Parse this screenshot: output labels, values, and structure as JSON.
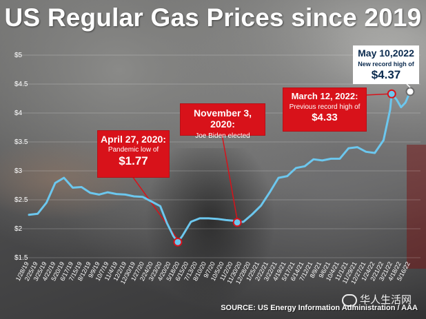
{
  "title": "US Regular Gas Prices since 2019",
  "source": "SOURCE: US Energy Information Administration / AAA",
  "watermark": "华人生活网",
  "colors": {
    "line": "#6cc7ee",
    "callout": "#d8121a",
    "record_text": "#0a2a4e"
  },
  "annotations": {
    "low": {
      "date": "April 27, 2020:",
      "note": "Pandemic low of",
      "value": "$1.77"
    },
    "biden": {
      "date": "November 3, 2020:",
      "note": "Joe Biden elected"
    },
    "prev_record": {
      "date": "March 12, 2022:",
      "note": "Previous record high of",
      "value": "$4.33"
    },
    "record": {
      "date": "May 10,2022",
      "note": "New record high of",
      "value": "$4.37"
    }
  },
  "chart_data": {
    "type": "line",
    "ylim": [
      1.5,
      5.0
    ],
    "yticks": [
      "$1.5",
      "$2",
      "$2.5",
      "$3",
      "$3.5",
      "$4",
      "$4.5",
      "$5"
    ],
    "ytick_values": [
      1.5,
      2,
      2.5,
      3,
      3.5,
      4,
      4.5,
      5
    ],
    "xticks": [
      "1/28/19",
      "2/25/19",
      "3/25/19",
      "4/22/19",
      "5/20/19",
      "6/17/19",
      "7/15/19",
      "8/12/19",
      "9/9/19",
      "10/7/19",
      "11/4/19",
      "12/2/19",
      "12/30/19",
      "1/27/20",
      "2/24/20",
      "3/23/20",
      "4/20/20",
      "5/18/20",
      "6/15/20",
      "7/13/20",
      "8/10/20",
      "9/7/20",
      "10/5/20",
      "11/2/20",
      "11/30/20",
      "12/28/20",
      "1/25/21",
      "2/22/21",
      "3/22/21",
      "4/19/21",
      "5/17/21",
      "6/14/21",
      "7/12/21",
      "8/9/21",
      "9/6/21",
      "10/4/21",
      "11/1/21",
      "11/29/21",
      "12/27/21",
      "1/24/22",
      "2/21/22",
      "3/21/22",
      "4/18/22",
      "5/16/22"
    ],
    "x": [
      "1/7/19",
      "2/4/19",
      "3/4/19",
      "4/1/19",
      "4/29/19",
      "5/27/19",
      "6/24/19",
      "7/22/19",
      "8/19/19",
      "9/16/19",
      "10/14/19",
      "11/11/19",
      "12/9/19",
      "1/6/20",
      "2/3/20",
      "3/2/20",
      "3/23/20",
      "4/13/20",
      "4/27/20",
      "5/11/20",
      "6/8/20",
      "7/6/20",
      "8/3/20",
      "8/31/20",
      "9/28/20",
      "10/19/20",
      "11/3/20",
      "11/23/20",
      "12/21/20",
      "1/18/21",
      "2/15/21",
      "3/15/21",
      "4/12/21",
      "5/10/21",
      "6/7/21",
      "7/5/21",
      "8/2/21",
      "8/30/21",
      "9/27/21",
      "10/25/21",
      "11/22/21",
      "12/20/21",
      "1/17/22",
      "2/14/22",
      "3/7/22",
      "3/12/22",
      "3/28/22",
      "4/11/22",
      "4/25/22",
      "5/10/22"
    ],
    "series": [
      {
        "values": [
          2.24,
          2.26,
          2.45,
          2.79,
          2.88,
          2.71,
          2.72,
          2.62,
          2.59,
          2.63,
          2.6,
          2.59,
          2.56,
          2.55,
          2.47,
          2.39,
          2.1,
          1.87,
          1.77,
          1.87,
          2.12,
          2.18,
          2.18,
          2.17,
          2.15,
          2.14,
          2.11,
          2.12,
          2.25,
          2.4,
          2.63,
          2.88,
          2.91,
          3.05,
          3.08,
          3.2,
          3.18,
          3.21,
          3.21,
          3.39,
          3.41,
          3.33,
          3.31,
          3.53,
          4.06,
          4.33,
          4.23,
          4.1,
          4.18,
          4.37
        ]
      }
    ],
    "grid": true,
    "highlights": [
      {
        "x": "4/27/20",
        "y": 1.77
      },
      {
        "x": "11/3/20",
        "y": 2.11
      },
      {
        "x": "3/12/22",
        "y": 4.33
      },
      {
        "x": "5/10/22",
        "y": 4.37
      }
    ]
  }
}
